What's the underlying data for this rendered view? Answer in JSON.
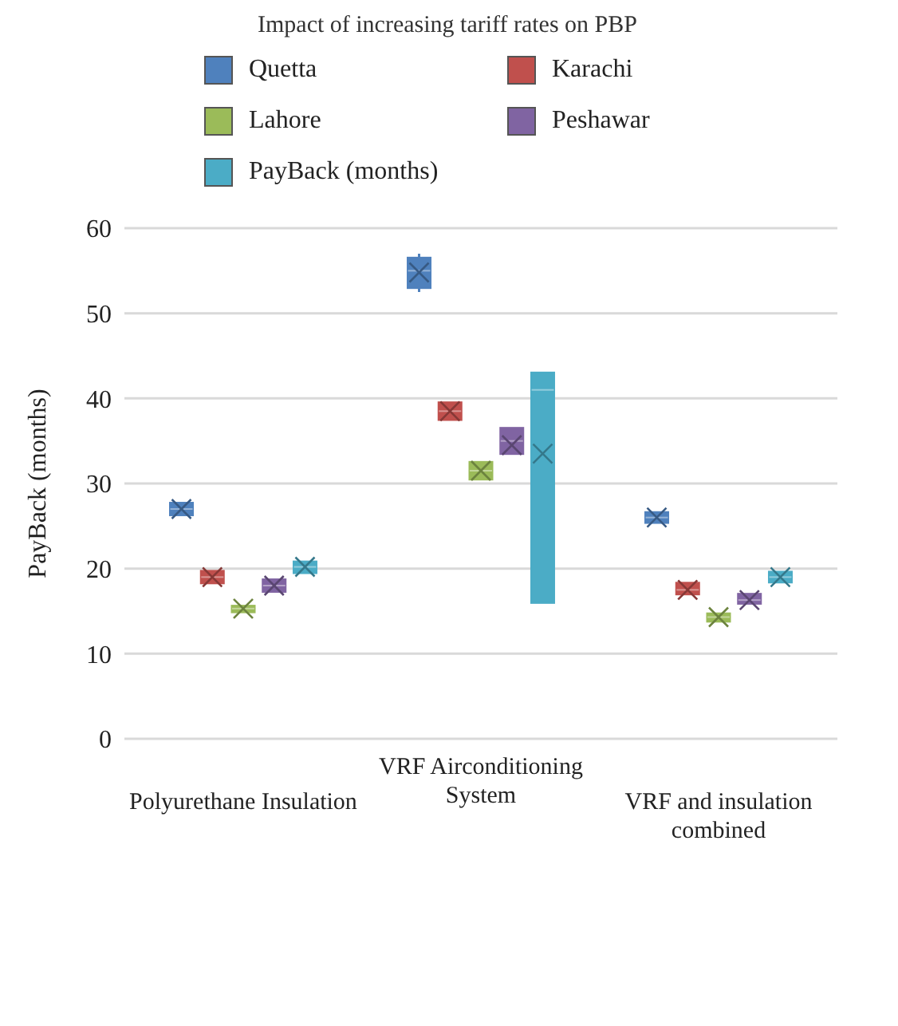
{
  "chart_data": {
    "type": "box",
    "title": "Impact of increasing tariff rates on PBP",
    "ylabel": "PayBack (months)",
    "categories": [
      "Polyurethane Insulation",
      "VRF Airconditioning System",
      "VRF and insulation combined"
    ],
    "ylim": [
      0,
      60
    ],
    "yticks": [
      0,
      10,
      20,
      30,
      40,
      50,
      60
    ],
    "grid": "y",
    "legend": "top",
    "series": [
      {
        "name": "Quetta",
        "color": "#4f81bd",
        "boxes": [
          {
            "low": 26.3,
            "q1": 26.3,
            "median": 27,
            "q3": 27.7,
            "high": 27.7,
            "mean": 27
          },
          {
            "low": 52.5,
            "q1": 53,
            "median": 55,
            "q3": 56.5,
            "high": 57,
            "mean": 54.8
          },
          {
            "low": 25.4,
            "q1": 25.4,
            "median": 26,
            "q3": 26.6,
            "high": 26.6,
            "mean": 26
          }
        ]
      },
      {
        "name": "Karachi",
        "color": "#c0504d",
        "boxes": [
          {
            "low": 18.3,
            "q1": 18.3,
            "median": 19,
            "q3": 19.7,
            "high": 19.7,
            "mean": 19
          },
          {
            "low": 37.5,
            "q1": 37.5,
            "median": 38.5,
            "q3": 39.5,
            "high": 39.5,
            "mean": 38.5
          },
          {
            "low": 17,
            "q1": 17,
            "median": 17.5,
            "q3": 18.3,
            "high": 18.3,
            "mean": 17.5
          }
        ]
      },
      {
        "name": "Lahore",
        "color": "#9bbb59",
        "boxes": [
          {
            "low": 14.9,
            "q1": 14.9,
            "median": 15.3,
            "q3": 15.6,
            "high": 15.6,
            "mean": 15.3
          },
          {
            "low": 30.5,
            "q1": 30.5,
            "median": 31.5,
            "q3": 32.5,
            "high": 32.5,
            "mean": 31.5
          },
          {
            "low": 13.8,
            "q1": 13.8,
            "median": 14.3,
            "q3": 14.7,
            "high": 14.7,
            "mean": 14.3
          }
        ]
      },
      {
        "name": "Peshawar",
        "color": "#8064a2",
        "boxes": [
          {
            "low": 17.3,
            "q1": 17.3,
            "median": 18,
            "q3": 18.7,
            "high": 18.7,
            "mean": 18
          },
          {
            "low": 33.5,
            "q1": 33.5,
            "median": 35,
            "q3": 36.5,
            "high": 36.5,
            "mean": 34.5
          },
          {
            "low": 15.9,
            "q1": 15.9,
            "median": 16.3,
            "q3": 17,
            "high": 17,
            "mean": 16.3
          }
        ]
      },
      {
        "name": "PayBack (months)",
        "color": "#4bacc6",
        "boxes": [
          {
            "low": 19.5,
            "q1": 19.5,
            "median": 20.2,
            "q3": 20.8,
            "high": 20.8,
            "mean": 20.2
          },
          {
            "low": 16,
            "q1": 16,
            "median": 41,
            "q3": 43,
            "high": 43,
            "mean": 33.5
          },
          {
            "low": 18.4,
            "q1": 18.4,
            "median": 19,
            "q3": 19.6,
            "high": 19.6,
            "mean": 19
          }
        ]
      }
    ]
  }
}
